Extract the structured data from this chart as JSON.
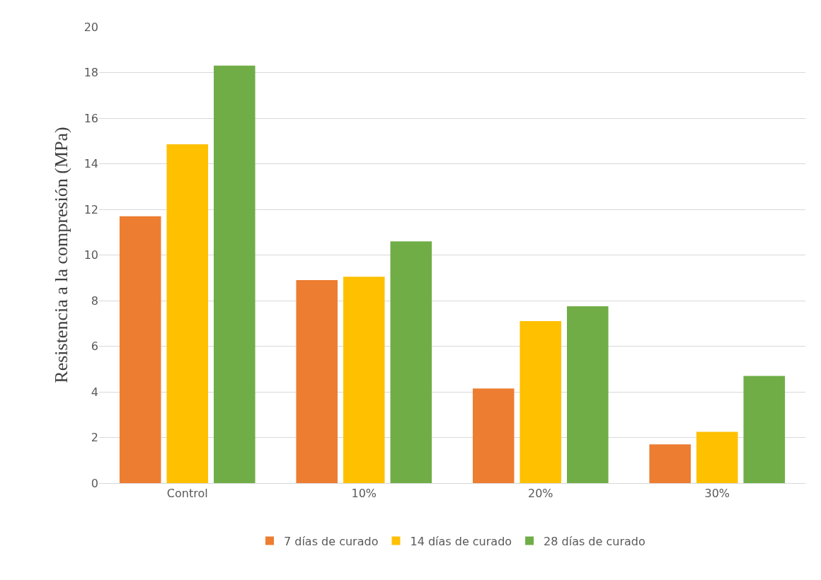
{
  "chart_data": {
    "type": "bar",
    "ylabel": "Resistencia a la compresión (MPa)",
    "categories": [
      "Control",
      "10%",
      "20%",
      "30%"
    ],
    "series": [
      {
        "name": "7 días de curado",
        "color": "#ed7d31",
        "values": [
          11.7,
          8.9,
          4.15,
          1.7
        ]
      },
      {
        "name": "14 días de curado",
        "color": "#ffc000",
        "values": [
          14.85,
          9.05,
          7.1,
          2.25
        ]
      },
      {
        "name": "28 días de curado",
        "color": "#70ad47",
        "values": [
          18.3,
          10.6,
          7.75,
          4.7
        ]
      }
    ],
    "ylim": [
      0,
      20
    ],
    "yticks": [
      0,
      2,
      4,
      6,
      8,
      10,
      12,
      14,
      16,
      18,
      20
    ],
    "grid": "y",
    "legend": "bottom"
  }
}
